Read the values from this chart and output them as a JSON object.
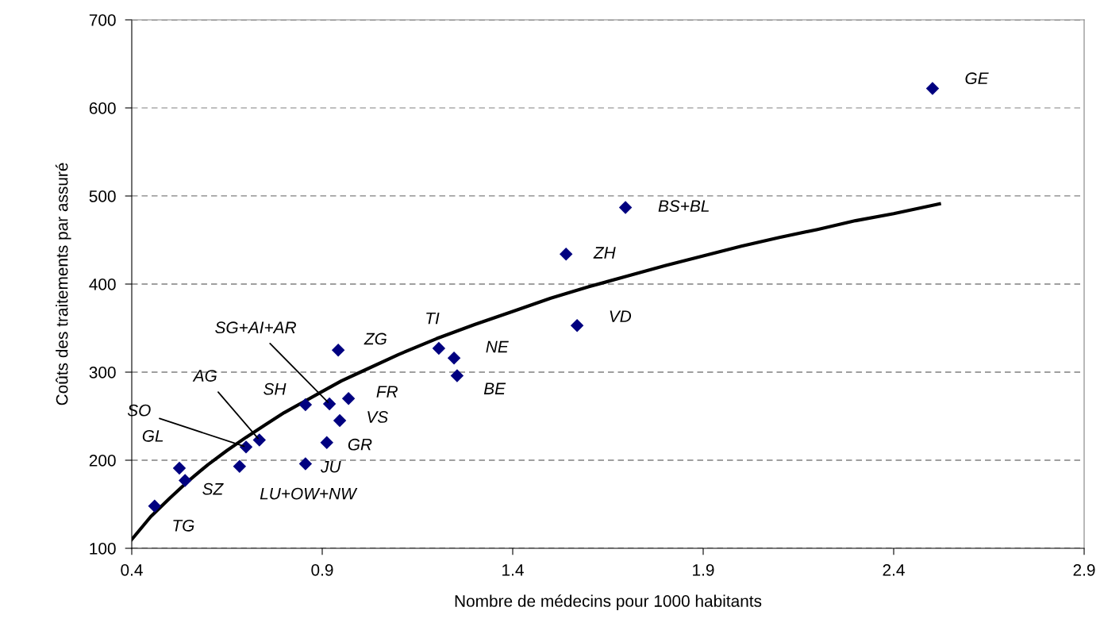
{
  "chart_data": {
    "type": "scatter",
    "xlabel": "Nombre de médecins pour 1000 habitants",
    "ylabel": "Coûts des traitements par assuré",
    "xlim": [
      0.4,
      2.9
    ],
    "xticks": [
      0.4,
      0.9,
      1.4,
      1.9,
      2.4,
      2.9
    ],
    "ylim": [
      100,
      700
    ],
    "yticks": [
      100,
      200,
      300,
      400,
      500,
      600,
      700
    ],
    "grid": "y",
    "marker": "diamond",
    "legend": false,
    "series": [
      {
        "color": "#000080",
        "x": [
          0.46,
          0.525,
          0.54,
          0.683,
          0.7,
          0.735,
          0.856,
          0.856,
          0.919,
          0.912,
          0.946,
          0.969,
          0.942,
          1.206,
          1.246,
          1.254,
          1.569,
          1.54,
          1.696,
          2.502
        ],
        "values": [
          148,
          191,
          177,
          193,
          215,
          223,
          263,
          196,
          264,
          220,
          245,
          270,
          325,
          327,
          316,
          296,
          353,
          434,
          487,
          622
        ],
        "value_labels": [
          "TG",
          "GL",
          "SZ",
          "LU+OW+NW",
          "SO",
          "AG",
          "SH",
          "JU",
          "SG+AI+AR",
          "GR",
          "VS",
          "FR",
          "ZG",
          "TI",
          "NE",
          "BE",
          "VD",
          "ZH",
          "BS+BL",
          "GE"
        ]
      },
      {
        "type": "line",
        "color": "#000000",
        "marker": "none",
        "x": [
          0.4,
          0.45,
          0.5,
          0.55,
          0.6,
          0.65,
          0.7,
          0.75,
          0.8,
          0.85,
          0.9,
          0.95,
          1.0,
          1.1,
          1.2,
          1.3,
          1.4,
          1.5,
          1.6,
          1.7,
          1.8,
          1.9,
          2.0,
          2.1,
          2.2,
          2.3,
          2.4,
          2.52
        ],
        "values": [
          110,
          136,
          157,
          177,
          195,
          211,
          226,
          240,
          254,
          266,
          278,
          290,
          300,
          320,
          338,
          354,
          369,
          384,
          397,
          409,
          421,
          432,
          443,
          453,
          462,
          472,
          480,
          491
        ]
      }
    ]
  }
}
